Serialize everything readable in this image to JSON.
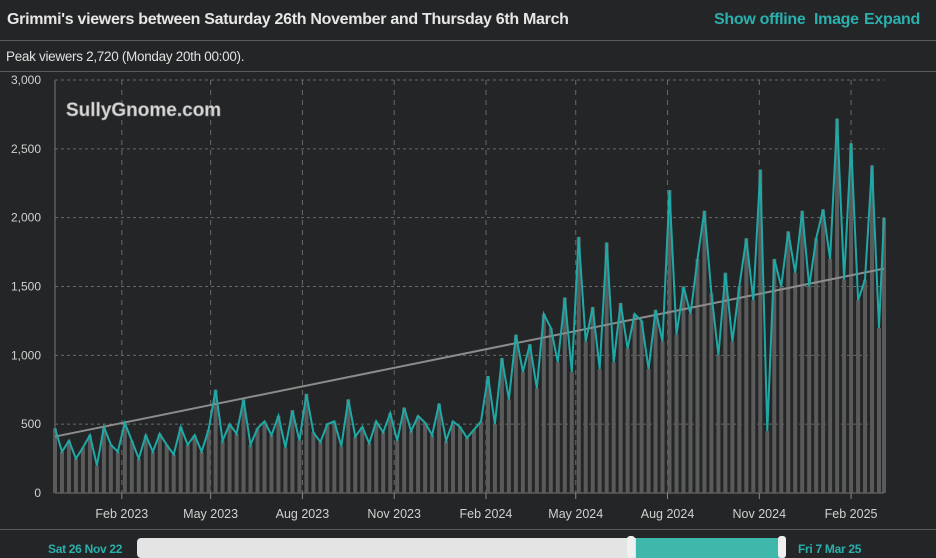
{
  "header": {
    "title": "Grimmi's viewers between Saturday 26th November and Thursday 6th March",
    "show_offline": "Show offline",
    "image": "Image",
    "expand": "Expand"
  },
  "summary": "Peak viewers 2,720 (Monday 20th 00:00).",
  "watermark": "SullyGnome.com",
  "navigator": {
    "start_label": "Sat 26 Nov 22",
    "end_label": "Fri 7 Mar 25"
  },
  "colors": {
    "line": "#1fa9a6",
    "bars": "#5a5a5a",
    "trend": "#8c8c8c",
    "grid": "#6a6a6a"
  },
  "chart_data": {
    "type": "line",
    "title": "",
    "xlabel": "",
    "ylabel": "",
    "ylim": [
      0,
      3000
    ],
    "xlim": [
      "2022-11-26",
      "2025-03-06"
    ],
    "grid": true,
    "yticks": [
      {
        "v": 0,
        "label": "0"
      },
      {
        "v": 500,
        "label": "500"
      },
      {
        "v": 1000,
        "label": "1,000"
      },
      {
        "v": 1500,
        "label": "1,500"
      },
      {
        "v": 2000,
        "label": "2,000"
      },
      {
        "v": 2500,
        "label": "2,500"
      },
      {
        "v": 3000,
        "label": "3,000"
      }
    ],
    "xticks": [
      {
        "d": "2023-02-01",
        "label": "Feb 2023"
      },
      {
        "d": "2023-05-01",
        "label": "May 2023"
      },
      {
        "d": "2023-08-01",
        "label": "Aug 2023"
      },
      {
        "d": "2023-11-01",
        "label": "Nov 2023"
      },
      {
        "d": "2024-02-01",
        "label": "Feb 2024"
      },
      {
        "d": "2024-05-01",
        "label": "May 2024"
      },
      {
        "d": "2024-08-01",
        "label": "Aug 2024"
      },
      {
        "d": "2024-11-01",
        "label": "Nov 2024"
      },
      {
        "d": "2025-02-01",
        "label": "Feb 2025"
      }
    ],
    "trend": {
      "start": [
        "2022-11-26",
        410
      ],
      "end": [
        "2025-03-06",
        1630
      ]
    },
    "points": [
      [
        "2022-11-26",
        470
      ],
      [
        "2022-12-03",
        300
      ],
      [
        "2022-12-10",
        380
      ],
      [
        "2022-12-17",
        250
      ],
      [
        "2022-12-24",
        330
      ],
      [
        "2022-12-31",
        420
      ],
      [
        "2023-01-07",
        200
      ],
      [
        "2023-01-14",
        480
      ],
      [
        "2023-01-21",
        350
      ],
      [
        "2023-01-28",
        300
      ],
      [
        "2023-02-04",
        510
      ],
      [
        "2023-02-11",
        380
      ],
      [
        "2023-02-18",
        250
      ],
      [
        "2023-02-25",
        420
      ],
      [
        "2023-03-04",
        300
      ],
      [
        "2023-03-11",
        430
      ],
      [
        "2023-03-18",
        350
      ],
      [
        "2023-03-25",
        280
      ],
      [
        "2023-04-01",
        480
      ],
      [
        "2023-04-08",
        350
      ],
      [
        "2023-04-15",
        420
      ],
      [
        "2023-04-22",
        300
      ],
      [
        "2023-04-29",
        460
      ],
      [
        "2023-05-06",
        750
      ],
      [
        "2023-05-13",
        380
      ],
      [
        "2023-05-20",
        500
      ],
      [
        "2023-05-27",
        430
      ],
      [
        "2023-06-03",
        680
      ],
      [
        "2023-06-10",
        350
      ],
      [
        "2023-06-17",
        470
      ],
      [
        "2023-06-24",
        520
      ],
      [
        "2023-07-01",
        420
      ],
      [
        "2023-07-08",
        560
      ],
      [
        "2023-07-15",
        330
      ],
      [
        "2023-07-22",
        600
      ],
      [
        "2023-07-29",
        380
      ],
      [
        "2023-08-05",
        720
      ],
      [
        "2023-08-12",
        440
      ],
      [
        "2023-08-19",
        370
      ],
      [
        "2023-08-26",
        500
      ],
      [
        "2023-09-02",
        520
      ],
      [
        "2023-09-09",
        340
      ],
      [
        "2023-09-16",
        680
      ],
      [
        "2023-09-23",
        410
      ],
      [
        "2023-09-30",
        480
      ],
      [
        "2023-10-07",
        360
      ],
      [
        "2023-10-14",
        520
      ],
      [
        "2023-10-21",
        440
      ],
      [
        "2023-10-28",
        580
      ],
      [
        "2023-11-04",
        380
      ],
      [
        "2023-11-11",
        620
      ],
      [
        "2023-11-18",
        450
      ],
      [
        "2023-11-25",
        560
      ],
      [
        "2023-12-02",
        510
      ],
      [
        "2023-12-09",
        420
      ],
      [
        "2023-12-16",
        650
      ],
      [
        "2023-12-23",
        380
      ],
      [
        "2023-12-30",
        520
      ],
      [
        "2024-01-06",
        480
      ],
      [
        "2024-01-13",
        400
      ],
      [
        "2024-01-20",
        460
      ],
      [
        "2024-01-27",
        520
      ],
      [
        "2024-02-03",
        850
      ],
      [
        "2024-02-10",
        500
      ],
      [
        "2024-02-17",
        980
      ],
      [
        "2024-02-24",
        680
      ],
      [
        "2024-03-02",
        1150
      ],
      [
        "2024-03-09",
        880
      ],
      [
        "2024-03-16",
        1080
      ],
      [
        "2024-03-23",
        760
      ],
      [
        "2024-03-30",
        1300
      ],
      [
        "2024-04-06",
        1200
      ],
      [
        "2024-04-13",
        950
      ],
      [
        "2024-04-20",
        1420
      ],
      [
        "2024-04-27",
        880
      ],
      [
        "2024-05-04",
        1860
      ],
      [
        "2024-05-11",
        1100
      ],
      [
        "2024-05-18",
        1350
      ],
      [
        "2024-05-25",
        900
      ],
      [
        "2024-06-01",
        1820
      ],
      [
        "2024-06-08",
        950
      ],
      [
        "2024-06-15",
        1380
      ],
      [
        "2024-06-22",
        1050
      ],
      [
        "2024-06-29",
        1300
      ],
      [
        "2024-07-06",
        1250
      ],
      [
        "2024-07-13",
        900
      ],
      [
        "2024-07-20",
        1330
      ],
      [
        "2024-07-27",
        1100
      ],
      [
        "2024-08-03",
        2200
      ],
      [
        "2024-08-10",
        1150
      ],
      [
        "2024-08-17",
        1500
      ],
      [
        "2024-08-24",
        1300
      ],
      [
        "2024-08-31",
        1700
      ],
      [
        "2024-09-07",
        2050
      ],
      [
        "2024-09-14",
        1450
      ],
      [
        "2024-09-21",
        1000
      ],
      [
        "2024-09-28",
        1600
      ],
      [
        "2024-10-05",
        1100
      ],
      [
        "2024-10-12",
        1500
      ],
      [
        "2024-10-19",
        1850
      ],
      [
        "2024-10-26",
        1400
      ],
      [
        "2024-11-02",
        2350
      ],
      [
        "2024-11-09",
        450
      ],
      [
        "2024-11-16",
        1700
      ],
      [
        "2024-11-23",
        1500
      ],
      [
        "2024-11-30",
        1900
      ],
      [
        "2024-12-07",
        1600
      ],
      [
        "2024-12-14",
        2050
      ],
      [
        "2024-12-21",
        1500
      ],
      [
        "2024-12-28",
        1850
      ],
      [
        "2025-01-04",
        2060
      ],
      [
        "2025-01-11",
        1700
      ],
      [
        "2025-01-18",
        2720
      ],
      [
        "2025-01-25",
        1550
      ],
      [
        "2025-02-01",
        2540
      ],
      [
        "2025-02-08",
        1400
      ],
      [
        "2025-02-15",
        1550
      ],
      [
        "2025-02-22",
        2380
      ],
      [
        "2025-03-01",
        1200
      ],
      [
        "2025-03-06",
        2000
      ]
    ]
  }
}
